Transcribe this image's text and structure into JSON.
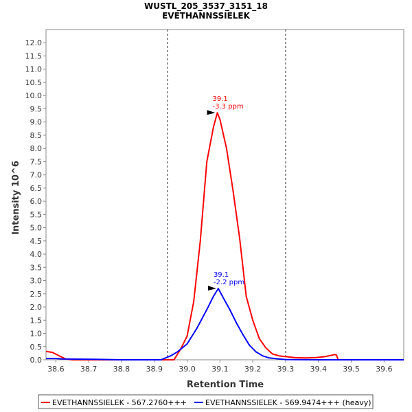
{
  "chart_data": {
    "type": "line",
    "title": "WUSTL_205_3537_3151_18",
    "subtitle": "EVETHANNSSIELEK",
    "xlabel": "Retention Time",
    "ylabel": "Intensity 10^6",
    "xlim": [
      38.57,
      39.66
    ],
    "ylim": [
      0.0,
      12.5
    ],
    "x_ticks": [
      "38.6",
      "38.7",
      "38.8",
      "38.9",
      "39.0",
      "39.1",
      "39.2",
      "39.3",
      "39.4",
      "39.5",
      "39.6"
    ],
    "y_ticks": [
      "0.0",
      "0.5",
      "1.0",
      "1.5",
      "2.0",
      "2.5",
      "3.0",
      "3.5",
      "4.0",
      "4.5",
      "5.0",
      "5.5",
      "6.0",
      "6.5",
      "7.0",
      "7.5",
      "8.0",
      "8.5",
      "9.0",
      "9.5",
      "10.0",
      "10.5",
      "11.0",
      "11.5",
      "12.0"
    ],
    "grid": false,
    "legend_position": "bottom",
    "boundaries": [
      38.94,
      39.3
    ],
    "series": [
      {
        "name": "EVETHANNSSIELEK - 567.2760+++",
        "color": "#ff0000",
        "points": [
          [
            38.57,
            0.32
          ],
          [
            38.59,
            0.28
          ],
          [
            38.61,
            0.15
          ],
          [
            38.63,
            0.03
          ],
          [
            38.65,
            0.0
          ],
          [
            38.75,
            0.0
          ],
          [
            38.85,
            0.0
          ],
          [
            38.93,
            0.0
          ],
          [
            38.96,
            0.0
          ],
          [
            38.98,
            0.4
          ],
          [
            39.0,
            0.9
          ],
          [
            39.02,
            2.2
          ],
          [
            39.04,
            4.5
          ],
          [
            39.06,
            7.5
          ],
          [
            39.08,
            8.8
          ],
          [
            39.092,
            9.35
          ],
          [
            39.1,
            9.1
          ],
          [
            39.12,
            8.0
          ],
          [
            39.14,
            6.4
          ],
          [
            39.16,
            4.6
          ],
          [
            39.18,
            2.4
          ],
          [
            39.2,
            1.5
          ],
          [
            39.22,
            0.8
          ],
          [
            39.24,
            0.45
          ],
          [
            39.26,
            0.22
          ],
          [
            39.28,
            0.15
          ],
          [
            39.3,
            0.12
          ],
          [
            39.33,
            0.08
          ],
          [
            39.36,
            0.07
          ],
          [
            39.39,
            0.08
          ],
          [
            39.42,
            0.12
          ],
          [
            39.45,
            0.2
          ],
          [
            39.455,
            0.18
          ],
          [
            39.46,
            0.0
          ],
          [
            39.55,
            0.0
          ],
          [
            39.66,
            0.0
          ]
        ]
      },
      {
        "name": "EVETHANNSSIELEK - 569.9474+++ (heavy)",
        "color": "#0000ff",
        "points": [
          [
            38.57,
            0.05
          ],
          [
            38.6,
            0.05
          ],
          [
            38.62,
            0.03
          ],
          [
            38.72,
            0.02
          ],
          [
            38.8,
            0.0
          ],
          [
            38.92,
            0.0
          ],
          [
            38.95,
            0.15
          ],
          [
            38.97,
            0.3
          ],
          [
            39.0,
            0.6
          ],
          [
            39.03,
            1.2
          ],
          [
            39.06,
            1.9
          ],
          [
            39.08,
            2.4
          ],
          [
            39.095,
            2.7
          ],
          [
            39.11,
            2.35
          ],
          [
            39.13,
            1.9
          ],
          [
            39.15,
            1.4
          ],
          [
            39.17,
            0.95
          ],
          [
            39.19,
            0.55
          ],
          [
            39.21,
            0.3
          ],
          [
            39.23,
            0.15
          ],
          [
            39.25,
            0.07
          ],
          [
            39.28,
            0.03
          ],
          [
            39.3,
            0.01
          ],
          [
            39.4,
            0.0
          ],
          [
            39.5,
            0.0
          ],
          [
            39.66,
            0.0
          ]
        ]
      }
    ],
    "annotations": [
      {
        "series": 0,
        "x": 39.092,
        "y": 9.35,
        "line1": "39.1",
        "line2": "-3.3 ppm"
      },
      {
        "series": 1,
        "x": 39.095,
        "y": 2.7,
        "line1": "39.1",
        "line2": "-2.2 ppm"
      }
    ]
  }
}
